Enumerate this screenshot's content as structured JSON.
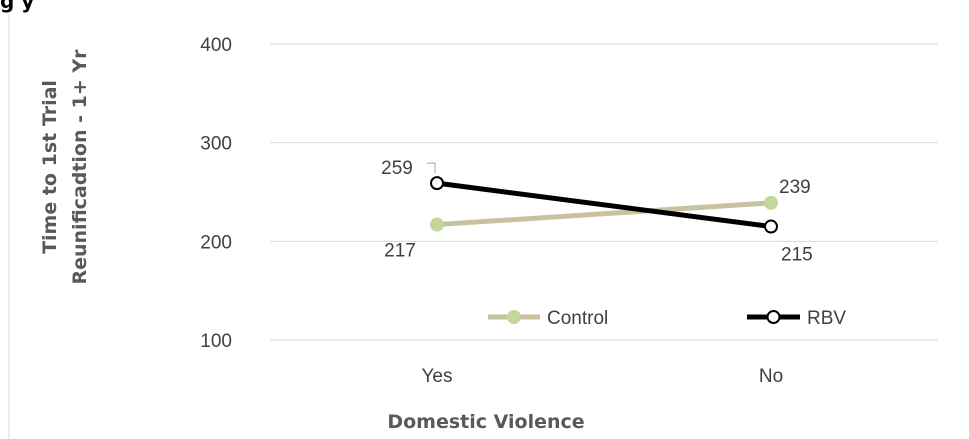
{
  "heading_fragment": "g  y",
  "chart_data": {
    "type": "line",
    "title": "",
    "xlabel": "Domestic Violence",
    "ylabel": "Time to 1st Trial Reunificadtion - 1+ Yr",
    "ylabel_lines": [
      "Time to 1st Trial",
      "Reunificadtion - 1+ Yr"
    ],
    "categories": [
      "Yes",
      "No"
    ],
    "ylim": [
      100,
      400
    ],
    "yticks": [
      "100",
      "200",
      "300",
      "400"
    ],
    "grid": true,
    "legend_position": "bottom-right",
    "series": [
      {
        "name": "Control",
        "values": [
          217,
          239
        ],
        "labels": [
          "217",
          "239"
        ],
        "color": "#c9c2a0",
        "marker_fill": "#c3d69b",
        "marker_stroke": "#c3d69b"
      },
      {
        "name": "RBV",
        "values": [
          259,
          215
        ],
        "labels": [
          "259",
          "215"
        ],
        "color": "#000000",
        "marker_fill": "#ffffff",
        "marker_stroke": "#000000"
      }
    ]
  }
}
